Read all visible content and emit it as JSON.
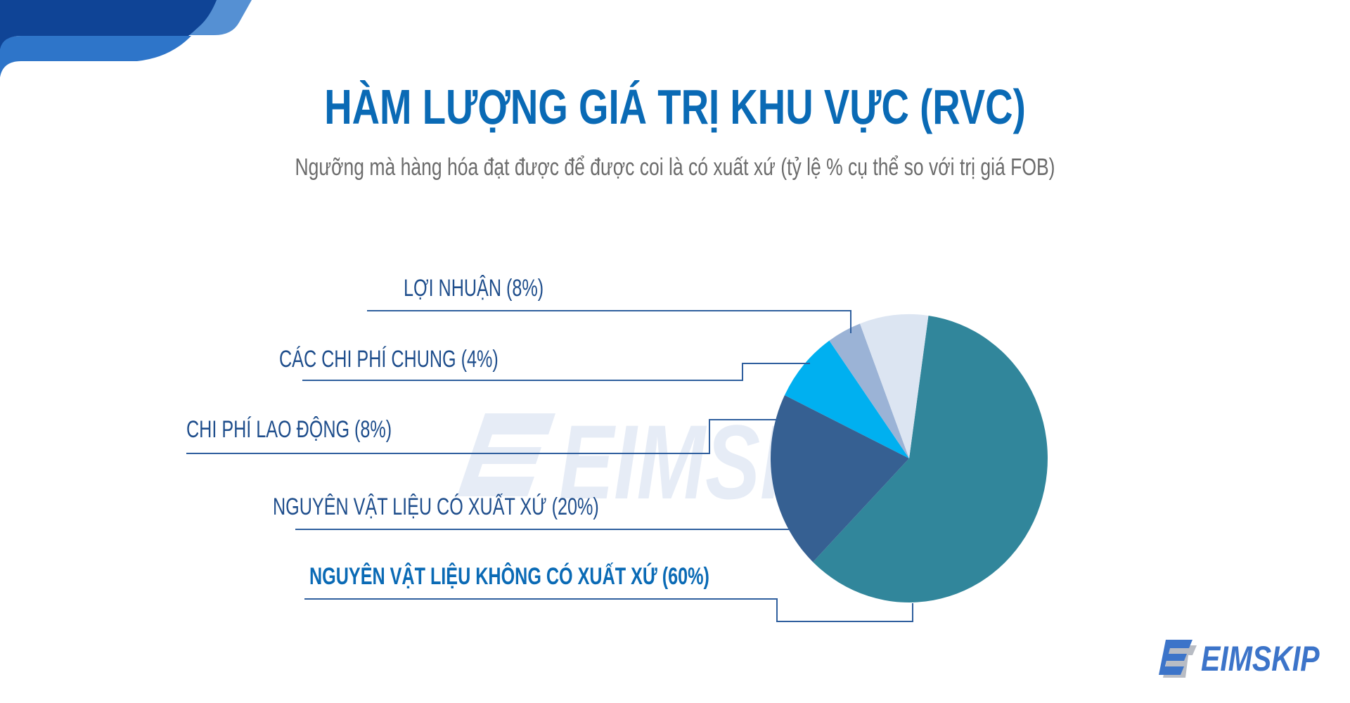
{
  "header": {
    "title": "HÀM LƯỢNG GIÁ TRỊ KHU VỰC (RVC)",
    "subtitle": "Ngưỡng mà hàng hóa đạt được để được coi là có xuất xứ (tỷ lệ % cụ thể so với trị giá FOB)"
  },
  "brand": {
    "logo_text": "EIMSKIP",
    "watermark_text": "EIMSKIP",
    "logo_icon": "eimskip-e-icon"
  },
  "colors": {
    "title": "#0a6ab5",
    "subtitle": "#6b6b6b",
    "label": "#1f4e8c",
    "leader_line": "#2f5f9e",
    "banner_dark": "#0f4496",
    "banner_mid": "#2e75c9",
    "banner_light": "#5590d3"
  },
  "chart_data": {
    "type": "pie",
    "title": "HÀM LƯỢNG GIÁ TRỊ KHU VỰC (RVC)",
    "subtitle": "Ngưỡng mà hàng hóa đạt được để được coi là có xuất xứ (tỷ lệ % cụ thể so với trị giá FOB)",
    "categories": [
      "NGUYÊN VẬT LIỆU KHÔNG CÓ XUẤT XỨ",
      "NGUYÊN VẬT LIỆU CÓ XUẤT XỨ",
      "CHI PHÍ LAO ĐỘNG",
      "CÁC CHI PHÍ CHUNG",
      "LỢI NHUẬN"
    ],
    "values": [
      60,
      20,
      8,
      4,
      8
    ],
    "unit": "%",
    "slice_colors": [
      "#31869b",
      "#366092",
      "#00b0f0",
      "#9bb3d6",
      "#dce5f2"
    ],
    "legend_position": "left (leader-line labels)",
    "labels": [
      "LỢI NHUẬN (8%)",
      "CÁC CHI PHÍ CHUNG (4%)",
      "CHI PHÍ LAO ĐỘNG (8%)",
      "NGUYÊN VẬT LIỆU CÓ XUẤT XỨ (20%)",
      "NGUYÊN VẬT LIỆU KHÔNG CÓ XUẤT XỨ (60%)"
    ]
  }
}
